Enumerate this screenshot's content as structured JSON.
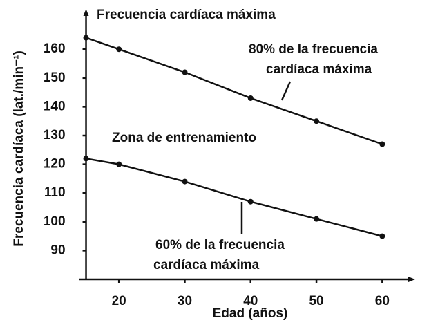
{
  "chart_data": {
    "type": "line",
    "title": "Frecuencia cardíaca máxima",
    "ylabel": "Frecuencia cardíaca (lat./min⁻¹)",
    "xlabel": "Edad (años)",
    "annotations": [
      "80% de la frecuencia",
      "cardíaca máxima",
      "Zona de entrenamiento",
      "60% de la frecuencia",
      "cardíaca máxima"
    ],
    "x": [
      15,
      20,
      30,
      40,
      50,
      60
    ],
    "series": [
      {
        "name": "80% de la frecuencia cardíaca máxima",
        "color": "#111111",
        "values": [
          164,
          160,
          152,
          143,
          135,
          127
        ]
      },
      {
        "name": "60% de la frecuencia cardíaca máxima",
        "color": "#111111",
        "values": [
          122,
          120,
          114,
          107,
          101,
          95
        ]
      }
    ],
    "xlim": [
      14,
      65
    ],
    "xticks": [
      20,
      30,
      40,
      50,
      60
    ],
    "ylim": [
      80,
      174
    ],
    "yticks": [
      90,
      100,
      110,
      120,
      130,
      140,
      150,
      160
    ],
    "grid": false
  }
}
